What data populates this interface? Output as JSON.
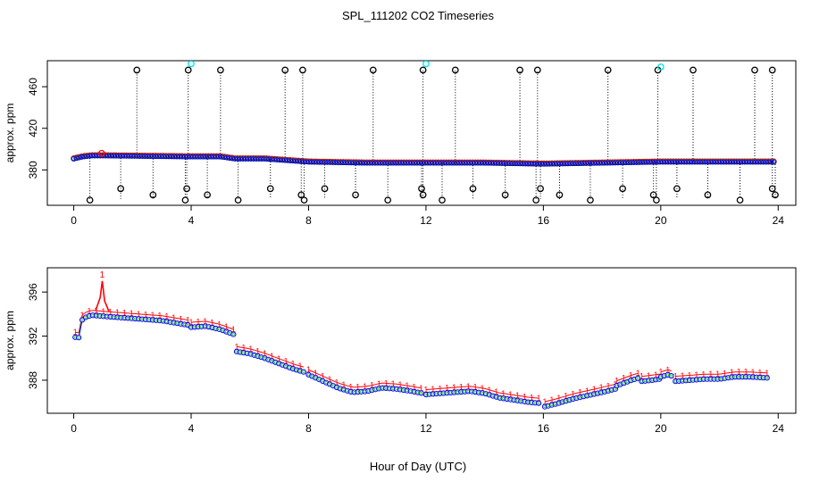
{
  "title": "SPL_111202  CO2 Timeseries",
  "xlabel": "Hour of Day (UTC)",
  "colors": {
    "black": "#000000",
    "red": "#ff0000",
    "green": "#00bb00",
    "blue": "#0000ff",
    "cyan": "#00e5e5"
  },
  "chart_data": [
    {
      "type": "scatter",
      "name": "top-panel",
      "ylabel": "approx. ppm",
      "xlim": [
        -0.9,
        24.6
      ],
      "ylim": [
        346,
        485
      ],
      "xticks": [
        0,
        4,
        8,
        12,
        16,
        20,
        24
      ],
      "yticks": [
        380,
        420,
        460
      ],
      "baseline": [
        {
          "x": 0.0,
          "y": 391
        },
        {
          "x": 0.3,
          "y": 393
        },
        {
          "x": 0.6,
          "y": 394
        },
        {
          "x": 1.0,
          "y": 394
        },
        {
          "x": 4.0,
          "y": 393
        },
        {
          "x": 5.0,
          "y": 393
        },
        {
          "x": 5.5,
          "y": 391
        },
        {
          "x": 6.5,
          "y": 391
        },
        {
          "x": 8.0,
          "y": 388
        },
        {
          "x": 10.0,
          "y": 387
        },
        {
          "x": 12.0,
          "y": 387
        },
        {
          "x": 14.0,
          "y": 387
        },
        {
          "x": 16.0,
          "y": 386
        },
        {
          "x": 18.0,
          "y": 387
        },
        {
          "x": 20.0,
          "y": 388
        },
        {
          "x": 24.0,
          "y": 388
        }
      ],
      "spikes_high": [
        2.15,
        3.9,
        5.0,
        7.2,
        7.8,
        10.2,
        11.9,
        13.0,
        15.2,
        15.8,
        18.2,
        19.9,
        21.1,
        23.2,
        23.8
      ],
      "spikes_low": [
        0.55,
        1.6,
        2.7,
        3.8,
        3.85,
        4.55,
        5.6,
        6.7,
        7.75,
        7.85,
        8.55,
        9.6,
        10.7,
        11.85,
        11.9,
        12.55,
        13.6,
        14.7,
        15.75,
        15.9,
        16.55,
        17.6,
        18.7,
        19.75,
        19.85,
        20.55,
        21.6,
        22.7,
        23.8,
        23.9
      ],
      "cyan_points": [
        {
          "x": 4.0,
          "y": 482
        },
        {
          "x": 12.0,
          "y": 482
        },
        {
          "x": 20.0,
          "y": 479
        }
      ],
      "red_points": [
        {
          "x": 0.95,
          "y": 396
        }
      ]
    },
    {
      "type": "line",
      "name": "bottom-panel",
      "ylabel": "approx. ppm",
      "xlim": [
        -0.9,
        24.6
      ],
      "ylim": [
        385.0,
        398.2
      ],
      "xticks": [
        0,
        4,
        8,
        12,
        16,
        20,
        24
      ],
      "yticks": [
        388,
        392,
        396
      ],
      "gaps": [
        4.0,
        5.5,
        8.0,
        12.0,
        16.0,
        18.5,
        19.3,
        20.0,
        20.5
      ],
      "blue_segments": [
        [
          [
            0.05,
            391.9
          ],
          [
            0.15,
            391.6
          ],
          [
            0.3,
            393.6
          ],
          [
            0.6,
            393.9
          ],
          [
            1.0,
            393.8
          ],
          [
            2.0,
            393.6
          ],
          [
            3.0,
            393.4
          ],
          [
            3.9,
            393.0
          ]
        ],
        [
          [
            4.0,
            392.8
          ],
          [
            4.5,
            392.9
          ],
          [
            5.0,
            392.6
          ],
          [
            5.5,
            392.1
          ]
        ],
        [
          [
            5.55,
            390.6
          ],
          [
            6.0,
            390.4
          ],
          [
            6.5,
            390.0
          ],
          [
            7.0,
            389.5
          ],
          [
            7.5,
            389.0
          ],
          [
            7.9,
            388.7
          ]
        ],
        [
          [
            8.0,
            388.5
          ],
          [
            8.5,
            387.9
          ],
          [
            9.0,
            387.3
          ],
          [
            9.5,
            386.9
          ],
          [
            10.0,
            387.0
          ],
          [
            10.5,
            387.3
          ],
          [
            11.0,
            387.2
          ],
          [
            11.5,
            387.0
          ],
          [
            11.9,
            386.8
          ]
        ],
        [
          [
            12.0,
            386.7
          ],
          [
            12.5,
            386.8
          ],
          [
            13.0,
            386.9
          ],
          [
            13.5,
            387.0
          ],
          [
            14.0,
            386.8
          ],
          [
            14.5,
            386.4
          ],
          [
            15.0,
            386.2
          ],
          [
            15.5,
            386.0
          ],
          [
            15.9,
            385.9
          ]
        ],
        [
          [
            16.05,
            385.6
          ],
          [
            16.5,
            385.9
          ],
          [
            17.0,
            386.3
          ],
          [
            17.5,
            386.6
          ],
          [
            18.0,
            386.9
          ],
          [
            18.45,
            387.2
          ]
        ],
        [
          [
            18.5,
            387.5
          ],
          [
            19.0,
            388.0
          ],
          [
            19.25,
            388.2
          ]
        ],
        [
          [
            19.35,
            387.9
          ],
          [
            19.7,
            388.0
          ],
          [
            19.95,
            388.1
          ]
        ],
        [
          [
            20.0,
            388.3
          ],
          [
            20.25,
            388.5
          ],
          [
            20.45,
            388.3
          ]
        ],
        [
          [
            20.5,
            387.9
          ],
          [
            21.0,
            388.0
          ],
          [
            21.5,
            388.1
          ],
          [
            22.0,
            388.1
          ],
          [
            22.5,
            388.3
          ],
          [
            23.0,
            388.3
          ],
          [
            23.7,
            388.2
          ]
        ]
      ],
      "green_offset": 0.15,
      "red_offset": 0.45,
      "red_spike": {
        "x": 0.97,
        "y": 397.0
      }
    }
  ]
}
